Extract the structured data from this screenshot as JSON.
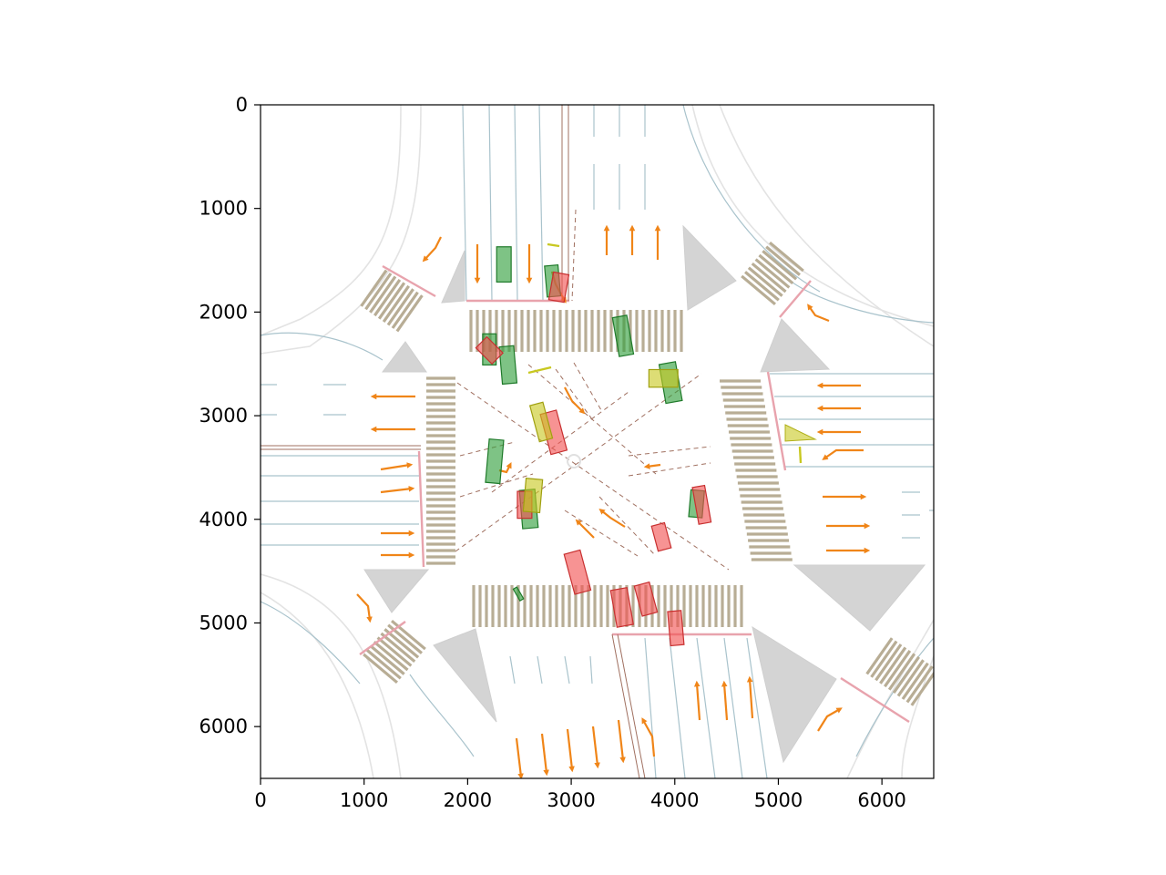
{
  "chart_data": {
    "type": "map",
    "title": "",
    "xlabel": "",
    "ylabel": "",
    "xlim": [
      0,
      6500
    ],
    "ylim": [
      6500,
      0
    ],
    "y_axis_inverted": true,
    "x_ticks": [
      "0",
      "1000",
      "2000",
      "3000",
      "4000",
      "5000",
      "6000"
    ],
    "y_ticks": [
      "0",
      "1000",
      "2000",
      "3000",
      "4000",
      "5000",
      "6000"
    ],
    "x_tick_values": [
      0,
      1000,
      2000,
      3000,
      4000,
      5000,
      6000
    ],
    "y_tick_values": [
      0,
      1000,
      2000,
      3000,
      4000,
      5000,
      6000
    ],
    "colors": {
      "lane_line": "#a9c3cc",
      "road_edge": "#e3e3e3",
      "crosswalk": "#b8ad95",
      "island": "#d4d4d4",
      "stop_line": "#e8a3ad",
      "guide_line": "#a07060",
      "arrow": "#f08518",
      "vehicle_green": "#2e9e3a",
      "vehicle_red": "#f25050",
      "vehicle_yellow": "#c8c820"
    },
    "vehicles_green": [
      {
        "x": 2350,
        "y": 1540,
        "w": 140,
        "h": 340,
        "angle": 0
      },
      {
        "x": 2820,
        "y": 1700,
        "w": 130,
        "h": 300,
        "angle": -5
      },
      {
        "x": 3500,
        "y": 2230,
        "w": 140,
        "h": 380,
        "angle": -10
      },
      {
        "x": 2210,
        "y": 2360,
        "w": 130,
        "h": 300,
        "angle": 0
      },
      {
        "x": 2390,
        "y": 2510,
        "w": 140,
        "h": 360,
        "angle": -5
      },
      {
        "x": 3960,
        "y": 2680,
        "w": 160,
        "h": 380,
        "angle": -10
      },
      {
        "x": 2260,
        "y": 3440,
        "w": 140,
        "h": 420,
        "angle": 5
      },
      {
        "x": 2590,
        "y": 3900,
        "w": 150,
        "h": 370,
        "angle": -5
      },
      {
        "x": 4210,
        "y": 3850,
        "w": 130,
        "h": 260,
        "angle": 5
      },
      {
        "x": 2490,
        "y": 4720,
        "w": 40,
        "h": 130,
        "angle": -30
      }
    ],
    "vehicles_red": [
      {
        "x": 2880,
        "y": 1760,
        "w": 150,
        "h": 270,
        "angle": 10
      },
      {
        "x": 2210,
        "y": 2370,
        "w": 150,
        "h": 220,
        "angle": -45
      },
      {
        "x": 2830,
        "y": 3160,
        "w": 160,
        "h": 400,
        "angle": -15
      },
      {
        "x": 2550,
        "y": 3860,
        "w": 140,
        "h": 260,
        "angle": 0
      },
      {
        "x": 4260,
        "y": 3860,
        "w": 120,
        "h": 360,
        "angle": -10
      },
      {
        "x": 3870,
        "y": 4170,
        "w": 130,
        "h": 250,
        "angle": -15
      },
      {
        "x": 3060,
        "y": 4510,
        "w": 160,
        "h": 400,
        "angle": -15
      },
      {
        "x": 3490,
        "y": 4850,
        "w": 160,
        "h": 360,
        "angle": -10
      },
      {
        "x": 3720,
        "y": 4770,
        "w": 150,
        "h": 300,
        "angle": -15
      },
      {
        "x": 4010,
        "y": 5050,
        "w": 130,
        "h": 330,
        "angle": -5
      }
    ],
    "vehicles_yellow": [
      {
        "x": 2710,
        "y": 3060,
        "w": 130,
        "h": 360,
        "angle": -15
      },
      {
        "x": 3890,
        "y": 2640,
        "w": 280,
        "h": 170,
        "angle": 0
      },
      {
        "x": 2630,
        "y": 3770,
        "w": 160,
        "h": 320,
        "angle": 5
      }
    ],
    "notes_yellow_segments": [
      {
        "x1": 2570,
        "y1": 2580,
        "x2": 2790,
        "y2": 2520
      },
      {
        "x1": 5200,
        "y1": 3240,
        "x2": 5220,
        "y2": 3380
      }
    ]
  }
}
